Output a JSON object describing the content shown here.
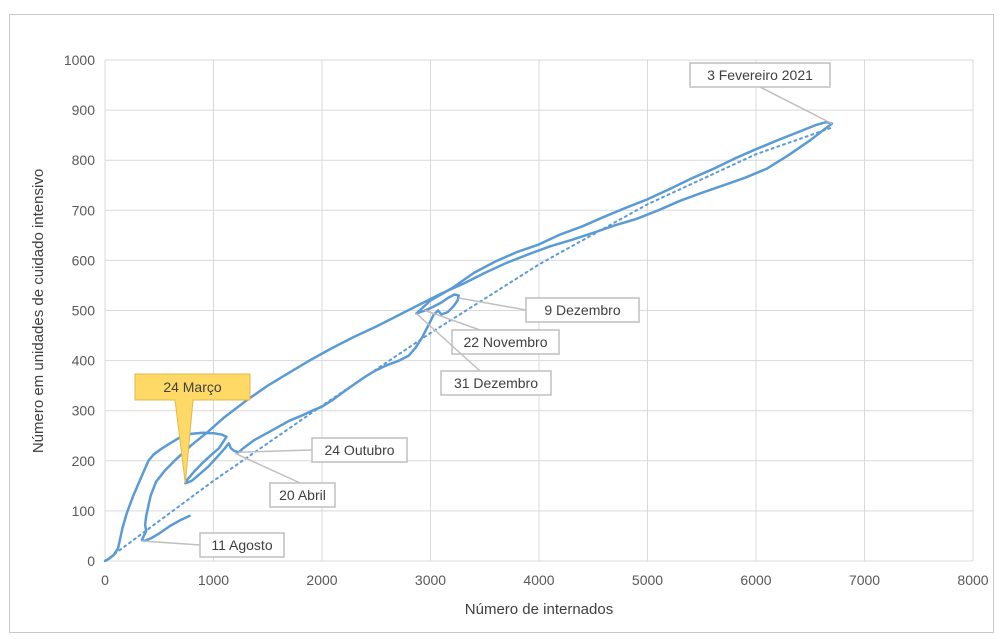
{
  "chart_data": {
    "type": "scatter",
    "title": "",
    "xlabel": "Número de internados",
    "ylabel": "Número em unidades de cuidado intensivo",
    "xlim": [
      0,
      8000
    ],
    "ylim": [
      0,
      1000
    ],
    "xticks": [
      0,
      1000,
      2000,
      3000,
      4000,
      5000,
      6000,
      7000,
      8000
    ],
    "yticks": [
      0,
      100,
      200,
      300,
      400,
      500,
      600,
      700,
      800,
      900,
      1000
    ],
    "grid": true,
    "legend": "none",
    "colors": {
      "series": "#5b9bd5",
      "gridline": "#d9d9d9",
      "highlight_fill": "#ffd966",
      "callout_border": "#bfbfbf"
    },
    "series": [
      {
        "style": "solid",
        "points": [
          [
            0,
            0
          ],
          [
            40,
            5
          ],
          [
            80,
            12
          ],
          [
            120,
            25
          ],
          [
            140,
            45
          ],
          [
            160,
            65
          ],
          [
            200,
            95
          ],
          [
            260,
            130
          ],
          [
            330,
            165
          ],
          [
            400,
            200
          ],
          [
            450,
            213
          ],
          [
            520,
            224
          ],
          [
            600,
            235
          ],
          [
            700,
            248
          ],
          [
            800,
            254
          ],
          [
            900,
            256
          ],
          [
            1000,
            255
          ],
          [
            1080,
            252
          ],
          [
            1120,
            248
          ],
          [
            1050,
            225
          ],
          [
            980,
            212
          ],
          [
            900,
            196
          ],
          [
            820,
            178
          ],
          [
            760,
            163
          ],
          [
            740,
            155
          ],
          [
            800,
            160
          ],
          [
            880,
            175
          ],
          [
            950,
            188
          ],
          [
            1030,
            207
          ],
          [
            1100,
            224
          ],
          [
            1140,
            235
          ],
          [
            1160,
            225
          ],
          [
            1190,
            220
          ],
          [
            1230,
            217
          ],
          [
            1280,
            226
          ],
          [
            1380,
            242
          ],
          [
            1500,
            256
          ],
          [
            1600,
            268
          ],
          [
            1700,
            280
          ],
          [
            1800,
            289
          ],
          [
            1900,
            299
          ],
          [
            2000,
            308
          ],
          [
            2100,
            322
          ],
          [
            2200,
            338
          ],
          [
            2300,
            353
          ],
          [
            2400,
            368
          ],
          [
            2500,
            381
          ],
          [
            2600,
            391
          ],
          [
            2700,
            399
          ],
          [
            2800,
            410
          ],
          [
            2860,
            425
          ],
          [
            2920,
            445
          ],
          [
            2980,
            470
          ],
          [
            3030,
            492
          ],
          [
            3070,
            500
          ],
          [
            3100,
            492
          ],
          [
            3160,
            497
          ],
          [
            3210,
            508
          ],
          [
            3250,
            520
          ],
          [
            3260,
            530
          ],
          [
            3220,
            532
          ],
          [
            3160,
            525
          ],
          [
            3100,
            516
          ],
          [
            3030,
            508
          ],
          [
            2950,
            500
          ],
          [
            2870,
            494
          ],
          [
            3000,
            520
          ],
          [
            3200,
            545
          ],
          [
            3400,
            575
          ],
          [
            3600,
            598
          ],
          [
            3800,
            617
          ],
          [
            4000,
            632
          ],
          [
            4200,
            652
          ],
          [
            4400,
            668
          ],
          [
            4600,
            687
          ],
          [
            4800,
            705
          ],
          [
            5000,
            722
          ],
          [
            5200,
            742
          ],
          [
            5400,
            763
          ],
          [
            5600,
            782
          ],
          [
            5800,
            803
          ],
          [
            6000,
            822
          ],
          [
            6200,
            840
          ],
          [
            6400,
            857
          ],
          [
            6550,
            870
          ],
          [
            6650,
            876
          ],
          [
            6700,
            873
          ],
          [
            6620,
            860
          ],
          [
            6500,
            840
          ],
          [
            6300,
            810
          ],
          [
            6100,
            783
          ],
          [
            5900,
            765
          ],
          [
            5700,
            750
          ],
          [
            5500,
            735
          ],
          [
            5300,
            719
          ],
          [
            5100,
            700
          ],
          [
            4900,
            683
          ],
          [
            4700,
            670
          ],
          [
            4500,
            655
          ],
          [
            4300,
            641
          ],
          [
            4100,
            628
          ],
          [
            3900,
            612
          ],
          [
            3700,
            595
          ],
          [
            3500,
            575
          ],
          [
            3300,
            553
          ],
          [
            3100,
            534
          ],
          [
            2900,
            512
          ],
          [
            2700,
            490
          ],
          [
            2500,
            468
          ],
          [
            2300,
            448
          ],
          [
            2100,
            426
          ],
          [
            1900,
            402
          ],
          [
            1700,
            376
          ],
          [
            1500,
            350
          ],
          [
            1300,
            320
          ],
          [
            1100,
            287
          ],
          [
            950,
            258
          ],
          [
            800,
            232
          ],
          [
            650,
            202
          ],
          [
            550,
            180
          ],
          [
            470,
            158
          ],
          [
            420,
            130
          ],
          [
            400,
            110
          ],
          [
            380,
            90
          ],
          [
            370,
            72
          ],
          [
            380,
            60
          ],
          [
            340,
            42
          ],
          [
            360,
            40
          ],
          [
            420,
            45
          ],
          [
            500,
            55
          ],
          [
            600,
            70
          ],
          [
            700,
            82
          ],
          [
            780,
            90
          ]
        ]
      },
      {
        "style": "dotted",
        "points": [
          [
            0,
            0
          ],
          [
            1000,
            160
          ],
          [
            2000,
            310
          ],
          [
            3000,
            455
          ],
          [
            4000,
            592
          ],
          [
            5000,
            712
          ],
          [
            6000,
            812
          ],
          [
            6700,
            865
          ]
        ]
      }
    ],
    "annotations": [
      {
        "text": "3 Fevereiro 2021",
        "point": [
          6700,
          873
        ],
        "highlight": false
      },
      {
        "text": "9 Dezembro",
        "point": [
          3260,
          525
        ],
        "highlight": false
      },
      {
        "text": "22 Novembro",
        "point": [
          2950,
          500
        ],
        "highlight": false
      },
      {
        "text": "31 Dezembro",
        "point": [
          2870,
          494
        ],
        "highlight": false
      },
      {
        "text": "24 Outubro",
        "point": [
          1230,
          217
        ],
        "highlight": false
      },
      {
        "text": "20 Abril",
        "point": [
          1200,
          215
        ],
        "highlight": false
      },
      {
        "text": "24 Março",
        "point": [
          740,
          155
        ],
        "highlight": true
      },
      {
        "text": "11 Agosto",
        "point": [
          340,
          40
        ],
        "highlight": false
      }
    ]
  }
}
